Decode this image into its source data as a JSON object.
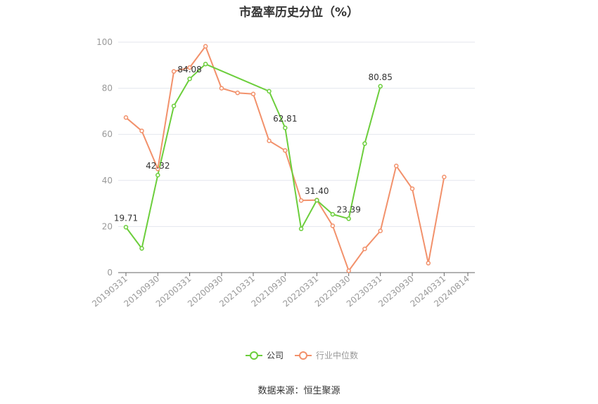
{
  "chart_data": {
    "type": "line",
    "title": "市盈率历史分位（%）",
    "xlabel": "",
    "ylabel": "",
    "ylim": [
      0,
      100
    ],
    "yticks": [
      0,
      20,
      40,
      60,
      80,
      100
    ],
    "x_ticks": [
      "20190331",
      "20190930",
      "20200331",
      "20200930",
      "20210331",
      "20210930",
      "20220331",
      "20220930",
      "20230331",
      "20230930",
      "20240331",
      "20240814"
    ],
    "grid": true,
    "legend": "bottom",
    "series": [
      {
        "name": "公司",
        "color": "#6cce3c",
        "points": [
          {
            "x": "20190331",
            "y": 19.71,
            "label": "19.71"
          },
          {
            "x": "20190630",
            "y": 10.5
          },
          {
            "x": "20190930",
            "y": 42.32,
            "label": "42.32"
          },
          {
            "x": "20191231",
            "y": 72.3
          },
          {
            "x": "20200331",
            "y": 84.08,
            "label": "84.08"
          },
          {
            "x": "20200630",
            "y": 90.5
          },
          {
            "x": "20210630",
            "y": 78.7
          },
          {
            "x": "20210930",
            "y": 62.81,
            "label": "62.81"
          },
          {
            "x": "20211231",
            "y": 19.0
          },
          {
            "x": "20220331",
            "y": 31.4,
            "label": "31.40"
          },
          {
            "x": "20220630",
            "y": 25.3
          },
          {
            "x": "20220930",
            "y": 23.39,
            "label": "23.39"
          },
          {
            "x": "20221231",
            "y": 56.0
          },
          {
            "x": "20230331",
            "y": 80.85,
            "label": "80.85"
          }
        ]
      },
      {
        "name": "行业中位数",
        "color": "#f2916b",
        "points": [
          {
            "x": "20190331",
            "y": 67.3
          },
          {
            "x": "20190630",
            "y": 61.5
          },
          {
            "x": "20190930",
            "y": 45.0
          },
          {
            "x": "20191231",
            "y": 87.3
          },
          {
            "x": "20200331",
            "y": 89.0
          },
          {
            "x": "20200630",
            "y": 98.2
          },
          {
            "x": "20200930",
            "y": 80.0
          },
          {
            "x": "20201231",
            "y": 78.0
          },
          {
            "x": "20210331",
            "y": 77.5
          },
          {
            "x": "20210630",
            "y": 57.2
          },
          {
            "x": "20210930",
            "y": 53.0
          },
          {
            "x": "20211231",
            "y": 31.3
          },
          {
            "x": "20220331",
            "y": 31.5
          },
          {
            "x": "20220630",
            "y": 20.3
          },
          {
            "x": "20220930",
            "y": 0.8
          },
          {
            "x": "20221231",
            "y": 10.3
          },
          {
            "x": "20230331",
            "y": 18.1
          },
          {
            "x": "20230630",
            "y": 46.3
          },
          {
            "x": "20230930",
            "y": 36.4
          },
          {
            "x": "20231231",
            "y": 4.1
          },
          {
            "x": "20240331",
            "y": 41.5
          }
        ]
      }
    ]
  },
  "source": "数据来源：恒生聚源"
}
